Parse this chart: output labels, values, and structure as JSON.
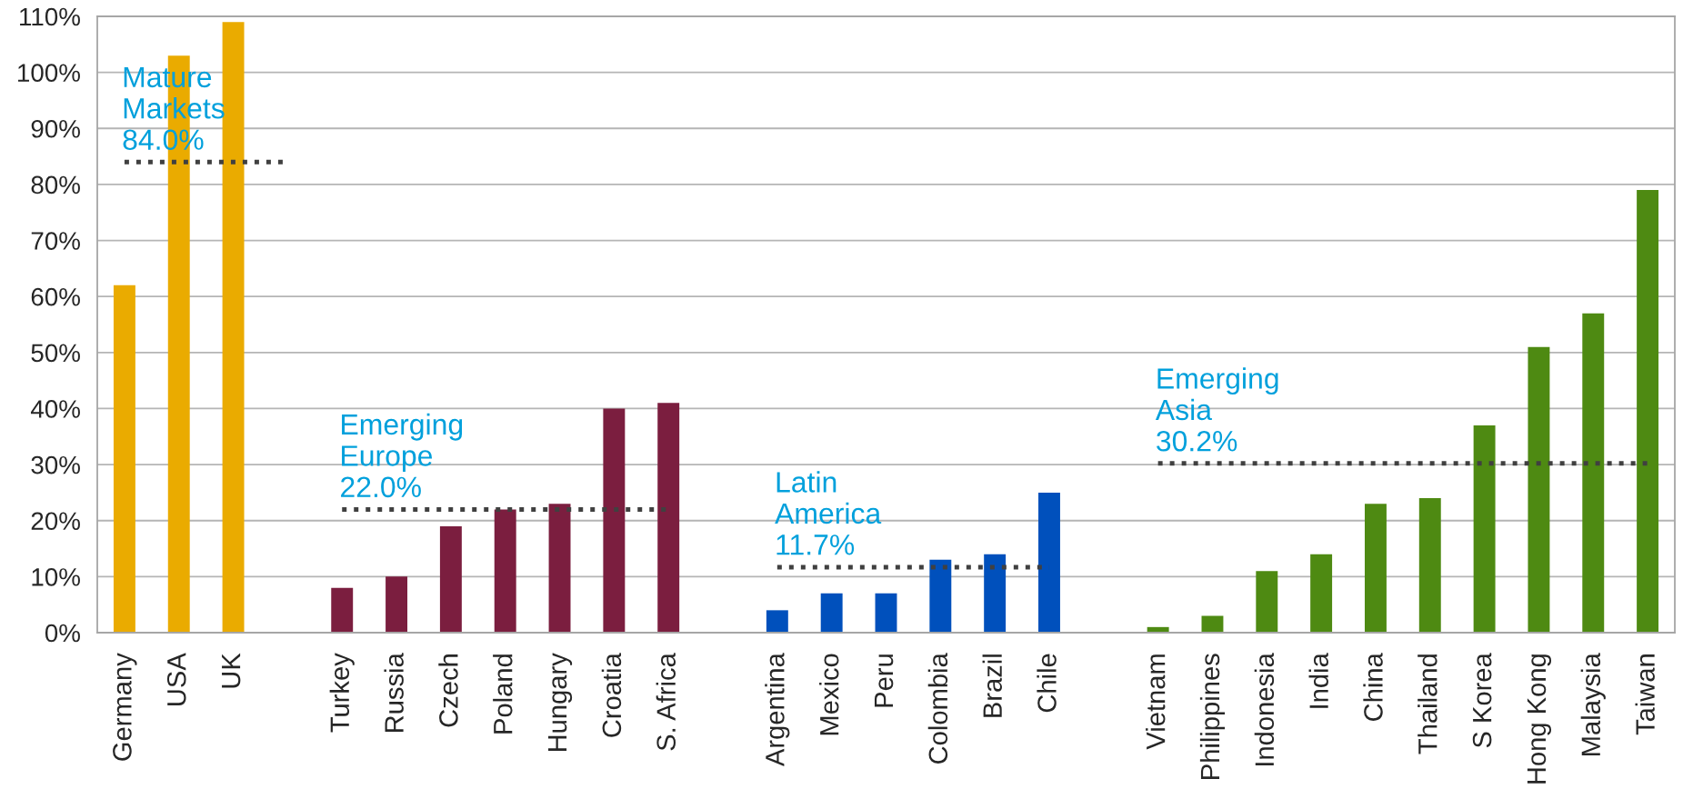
{
  "chart_data": {
    "type": "bar",
    "categories": [
      "Germany",
      "USA",
      "UK",
      null,
      "Turkey",
      "Russia",
      "Czech",
      "Poland",
      "Hungary",
      "Croatia",
      "S. Africa",
      null,
      "Argentina",
      "Mexico",
      "Peru",
      "Colombia",
      "Brazil",
      "Chile",
      null,
      "Vietnam",
      "Philippines",
      "Indonesia",
      "India",
      "China",
      "Thailand",
      "S Korea",
      "Hong Kong",
      "Malaysia",
      "Taiwan"
    ],
    "series": [
      {
        "values": [
          62,
          103,
          109,
          null,
          8,
          10,
          19,
          22,
          23,
          40,
          41,
          null,
          4,
          7,
          7,
          13,
          14,
          25,
          null,
          1,
          3,
          11,
          14,
          23,
          24,
          37,
          51,
          57,
          79
        ],
        "colors": [
          "#eaab00",
          "#eaab00",
          "#eaab00",
          null,
          "#7b1e3f",
          "#7b1e3f",
          "#7b1e3f",
          "#7b1e3f",
          "#7b1e3f",
          "#7b1e3f",
          "#7b1e3f",
          null,
          "#0050bc",
          "#0050bc",
          "#0050bc",
          "#0050bc",
          "#0050bc",
          "#0050bc",
          null,
          "#4e8a12",
          "#4e8a12",
          "#4e8a12",
          "#4e8a12",
          "#4e8a12",
          "#4e8a12",
          "#4e8a12",
          "#4e8a12",
          "#4e8a12",
          "#4e8a12"
        ]
      },
      {
        "type": "line",
        "color": "#404040",
        "line_style": "dotted",
        "marker": "none",
        "values": [
          84.0,
          84.0,
          84.0,
          84.0,
          null,
          null,
          null,
          null,
          null,
          null,
          null,
          null,
          null,
          null,
          null,
          null,
          null,
          null,
          null,
          null,
          null,
          null,
          null,
          null,
          null,
          null,
          null,
          null,
          null
        ]
      },
      {
        "type": "line",
        "color": "#404040",
        "line_style": "dotted",
        "marker": "none",
        "values": [
          null,
          null,
          null,
          null,
          22.0,
          22.0,
          22.0,
          22.0,
          22.0,
          22.0,
          22.0,
          null,
          null,
          null,
          null,
          null,
          null,
          null,
          null,
          null,
          null,
          null,
          null,
          null,
          null,
          null,
          null,
          null,
          null
        ]
      },
      {
        "type": "line",
        "color": "#404040",
        "line_style": "dotted",
        "marker": "none",
        "values": [
          null,
          null,
          null,
          null,
          null,
          null,
          null,
          null,
          null,
          null,
          null,
          null,
          11.7,
          11.7,
          11.7,
          11.7,
          11.7,
          11.7,
          null,
          null,
          null,
          null,
          null,
          null,
          null,
          null,
          null,
          null,
          null
        ]
      },
      {
        "type": "line",
        "color": "#404040",
        "line_style": "dotted",
        "marker": "none",
        "values": [
          null,
          null,
          null,
          null,
          null,
          null,
          null,
          null,
          null,
          null,
          null,
          null,
          null,
          null,
          null,
          null,
          null,
          null,
          null,
          30.2,
          30.2,
          30.2,
          30.2,
          30.2,
          30.2,
          30.2,
          30.2,
          30.2,
          30.2
        ]
      }
    ],
    "ylim": [
      0,
      110
    ],
    "yticks": [
      {
        "value": 0,
        "label": "0%"
      },
      {
        "value": 10,
        "label": "10%"
      },
      {
        "value": 20,
        "label": "20%"
      },
      {
        "value": 30,
        "label": "30%"
      },
      {
        "value": 40,
        "label": "40%"
      },
      {
        "value": 50,
        "label": "50%"
      },
      {
        "value": 60,
        "label": "60%"
      },
      {
        "value": 70,
        "label": "70%"
      },
      {
        "value": 80,
        "label": "80%"
      },
      {
        "value": 90,
        "label": "90%"
      },
      {
        "value": 100,
        "label": "100%"
      },
      {
        "value": 110,
        "label": "110%"
      }
    ],
    "grid": "y",
    "annotations": [
      {
        "text": "Mature\nMarkets\n84.0%",
        "x": "Germany",
        "y": 84.0
      },
      {
        "text": "Emerging\nEurope\n22.0%",
        "x": "Turkey",
        "y": 22.0
      },
      {
        "text": "Latin\nAmerica\n11.7%",
        "x": "Argentina",
        "y": 11.7
      },
      {
        "text": "Emerging\nAsia\n30.2%",
        "x": "Vietnam",
        "y": 30.2
      }
    ]
  }
}
